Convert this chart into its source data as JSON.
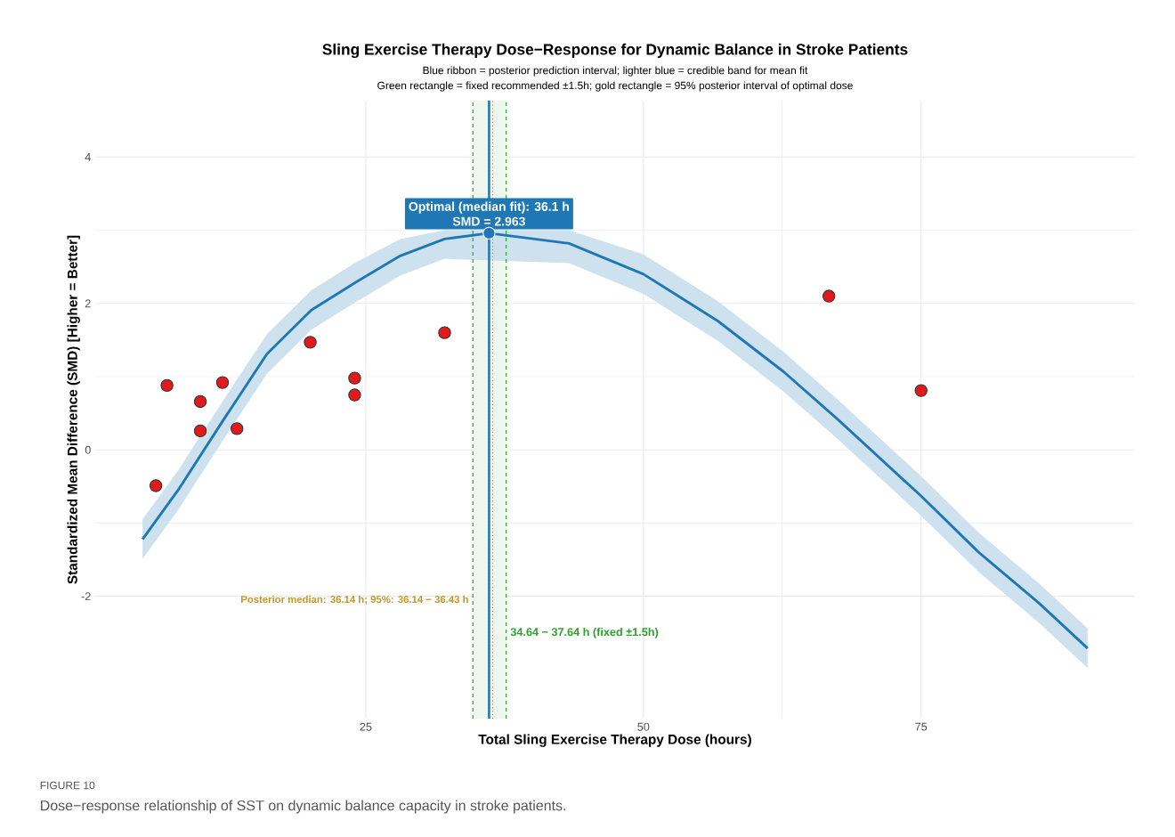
{
  "chart_data": {
    "type": "line",
    "title": "Sling Exercise Therapy Dose−Response for Dynamic Balance in Stroke Patients",
    "subtitle": [
      "Blue ribbon = posterior prediction interval; lighter blue = credible band for mean fit",
      "Green rectangle = fixed recommended ±1.5h; gold rectangle = 95% posterior interval of optimal dose"
    ],
    "xlabel": "Total Sling Exercise Therapy Dose (hours)",
    "ylabel": "Standardized Mean Difference (SMD) [Higher = Better]",
    "xlim": [
      0.64,
      94.26
    ],
    "ylim": [
      -3.67,
      4.77
    ],
    "xticks": [
      25,
      50,
      75
    ],
    "yticks": [
      -2,
      0,
      2,
      4
    ],
    "grid": true,
    "series": [
      {
        "color": "#1f78b4",
        "line_style": "solid",
        "marker": "none",
        "x": [
          4.9,
          8.1,
          12.1,
          16.1,
          20.1,
          24.1,
          28.1,
          32.1,
          36.1,
          43.3,
          50,
          56.7,
          62.6,
          67.4,
          75,
          80.2,
          85.6,
          90
        ],
        "values": [
          -1.22,
          -0.55,
          0.39,
          1.31,
          1.91,
          2.29,
          2.65,
          2.88,
          2.96,
          2.82,
          2.4,
          1.76,
          1.07,
          0.43,
          -0.63,
          -1.4,
          -2.09,
          -2.71
        ],
        "lower": [
          -1.49,
          -0.82,
          0.12,
          1.04,
          1.64,
          2.02,
          2.38,
          2.61,
          null,
          2.55,
          2.13,
          1.49,
          0.8,
          0.16,
          -0.9,
          -1.67,
          -2.36,
          -2.98
        ],
        "upper": [
          -0.95,
          -0.28,
          0.66,
          1.58,
          2.18,
          2.56,
          2.88,
          3.0,
          null,
          3.0,
          2.67,
          2.03,
          1.34,
          0.7,
          -0.36,
          -1.13,
          -1.82,
          -2.44
        ]
      },
      {
        "type": "scatter",
        "color": "#e31a1c",
        "marker": "circle",
        "x": [
          6.1,
          7.1,
          10.1,
          10.1,
          12.1,
          13.4,
          20,
          24,
          24,
          32.1,
          66.7,
          75
        ],
        "values": [
          -0.49,
          0.88,
          0.66,
          0.26,
          0.92,
          0.29,
          1.47,
          0.98,
          0.75,
          1.6,
          2.1,
          0.81
        ]
      },
      {
        "type": "scatter",
        "color": "#1f78b4",
        "marker": "circle",
        "x": [
          36.1
        ],
        "values": [
          2.96
        ]
      }
    ],
    "bands": [
      {
        "axis": "x",
        "from": 34.64,
        "to": 37.64,
        "label": "34.64 − 37.64 h (fixed ±1.5h)",
        "color": "#eef7ee"
      },
      {
        "axis": "x",
        "from": 36.14,
        "to": 36.43,
        "label": "Posterior median: 36.14 h; 95%: 36.14 − 36.43 h",
        "color": "#fbf5e6"
      }
    ],
    "ref_lines": [
      {
        "axis": "x",
        "value": 34.64,
        "color": "#2ca02c",
        "line_style": "dashed"
      },
      {
        "axis": "x",
        "value": 37.64,
        "color": "#2ca02c",
        "line_style": "dashed"
      },
      {
        "axis": "x",
        "value": 36.14,
        "color": "#c8951f",
        "line_style": "dotted"
      },
      {
        "axis": "x",
        "value": 36.43,
        "color": "#c8951f",
        "line_style": "dotted"
      },
      {
        "axis": "x",
        "value": 36.1,
        "color": "#1f78b4",
        "line_style": "solid"
      }
    ],
    "annotations": [
      {
        "text": "Optimal (median fit): 36.1 h",
        "x": 36.1,
        "y": 2.96
      },
      {
        "text": "SMD = 2.963",
        "x": 36.1,
        "y": 2.96
      },
      "FIGURE 10",
      "Dose−response relationship of SST on dynamic balance capacity in stroke patients."
    ]
  }
}
